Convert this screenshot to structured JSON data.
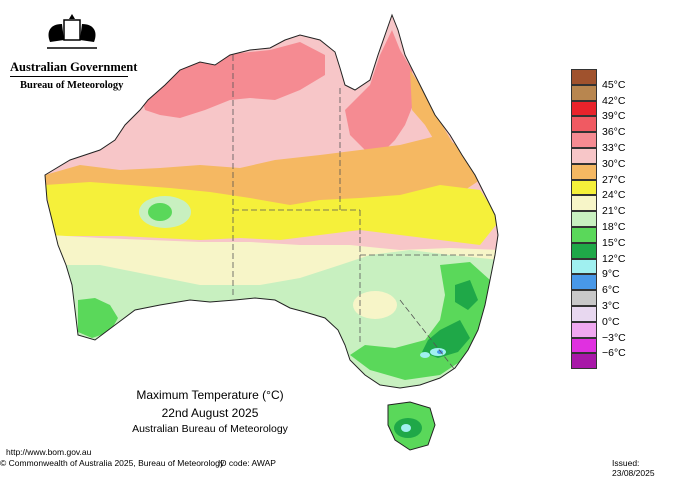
{
  "header": {
    "gov_title": "Australian Government",
    "agency": "Bureau of Meteorology"
  },
  "map_title": {
    "line1": "Maximum Temperature (°C)",
    "line2": "22nd August 2025",
    "line3": "Australian Bureau of Meteorology"
  },
  "legend": {
    "items": [
      {
        "label": "45°C",
        "color": "#a0522d"
      },
      {
        "label": "42°C",
        "color": "#b8864f"
      },
      {
        "label": "39°C",
        "color": "#e8232b"
      },
      {
        "label": "36°C",
        "color": "#f05a62"
      },
      {
        "label": "33°C",
        "color": "#f58b92"
      },
      {
        "label": "30°C",
        "color": "#f7c6c8"
      },
      {
        "label": "27°C",
        "color": "#f5b862"
      },
      {
        "label": "24°C",
        "color": "#f5f03a"
      },
      {
        "label": "21°C",
        "color": "#f7f5c8"
      },
      {
        "label": "18°C",
        "color": "#c8f0c0"
      },
      {
        "label": "15°C",
        "color": "#5ad85a"
      },
      {
        "label": "12°C",
        "color": "#1fa848"
      },
      {
        "label": "9°C",
        "color": "#a0f0f0"
      },
      {
        "label": "6°C",
        "color": "#4898e8"
      },
      {
        "label": "3°C",
        "color": "#c8c8c8"
      },
      {
        "label": "0°C",
        "color": "#e8d8f0"
      },
      {
        "label": "−3°C",
        "color": "#f0a8f0"
      },
      {
        "label": "−6°C",
        "color": "#e030e0"
      },
      {
        "label": "",
        "color": "#a818a8"
      }
    ]
  },
  "footer": {
    "url": "http://www.bom.gov.au",
    "copyright": "© Commonwealth of Australia 2025, Bureau of Meteorology",
    "id_code": "ID code: AWAP",
    "issued": "Issued: 23/08/2025"
  }
}
